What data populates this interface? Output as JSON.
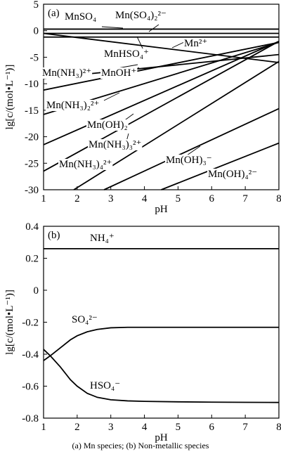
{
  "caption": "(a) Mn species; (b) Non-metallic species",
  "chart_data": [
    {
      "type": "line",
      "panel_label": "(a)",
      "xlabel": "pH",
      "ylabel": "lg[c/(mol•L⁻¹)]",
      "xlim": [
        1,
        8
      ],
      "ylim": [
        -30,
        5
      ],
      "x_ticks": [
        1,
        2,
        3,
        4,
        5,
        6,
        7,
        8
      ],
      "y_ticks": [
        5,
        0,
        -5,
        -10,
        -15,
        -20,
        -25,
        -30
      ],
      "series": [
        {
          "name": "MnSO₄",
          "x": [
            1,
            8
          ],
          "y": [
            0.3,
            0.3
          ]
        },
        {
          "name": "Mn(SO₄)₂²⁻",
          "x": [
            1,
            8
          ],
          "y": [
            -0.5,
            -0.5
          ]
        },
        {
          "name": "MnHSO₄⁺",
          "x": [
            1,
            8
          ],
          "y": [
            -1.2,
            -1.2
          ]
        },
        {
          "name": "Mn²⁺",
          "x": [
            1,
            8
          ],
          "y": [
            -0.5,
            -6.0
          ]
        },
        {
          "name": "Mn(NH₃)²⁺",
          "x": [
            1,
            8
          ],
          "y": [
            -9.0,
            -4.5
          ]
        },
        {
          "name": "MnOH⁺",
          "x": [
            1,
            8
          ],
          "y": [
            -11.2,
            -2.2
          ]
        },
        {
          "name": "Mn(NH₃)₂²⁺",
          "x": [
            1,
            8
          ],
          "y": [
            -15.8,
            -2.2
          ]
        },
        {
          "name": "Mn(OH)₂",
          "x": [
            1,
            8
          ],
          "y": [
            -21.5,
            -2.0
          ]
        },
        {
          "name": "Mn(NH₃)₃²⁺",
          "x": [
            1,
            8
          ],
          "y": [
            -26.5,
            -2.0
          ]
        },
        {
          "name": "Mn(NH₃)₄²⁺",
          "x": [
            1.9,
            8
          ],
          "y": [
            -30,
            -5.8
          ]
        },
        {
          "name": "Mn(OH)₃⁻",
          "x": [
            2.8,
            8
          ],
          "y": [
            -30,
            -14.7
          ]
        },
        {
          "name": "Mn(OH)₄²⁻",
          "x": [
            4.5,
            8
          ],
          "y": [
            -30,
            -21.2
          ]
        }
      ],
      "annotations": [
        {
          "text": "MnSO₄"
        },
        {
          "text": "Mn(SO₄)₂²⁻"
        },
        {
          "text": "Mn²⁺"
        },
        {
          "text": "MnHSO₄⁺"
        },
        {
          "text": "Mn(NH₃)²⁺"
        },
        {
          "text": "MnOH⁺"
        },
        {
          "text": "Mn(NH₃)₂²⁺"
        },
        {
          "text": "Mn(OH)₂"
        },
        {
          "text": "Mn(NH₃)₃²⁺"
        },
        {
          "text": "Mn(NH₃)₄²⁺"
        },
        {
          "text": "Mn(OH)₃⁻"
        },
        {
          "text": "Mn(OH)₄²⁻"
        }
      ]
    },
    {
      "type": "line",
      "panel_label": "(b)",
      "xlabel": "pH",
      "ylabel": "lg[c/(mol•L⁻¹)]",
      "xlim": [
        1,
        8
      ],
      "ylim": [
        -0.8,
        0.4
      ],
      "x_ticks": [
        1,
        2,
        3,
        4,
        5,
        6,
        7,
        8
      ],
      "y_ticks": [
        "0.4",
        "0.2",
        "0",
        "-0.2",
        "-0.4",
        "-0.6",
        "-0.8"
      ],
      "series": [
        {
          "name": "NH₄⁺",
          "x": [
            1,
            8
          ],
          "y": [
            0.26,
            0.26
          ]
        },
        {
          "name": "SO₄²⁻",
          "x": [
            1,
            1.2,
            1.5,
            1.8,
            2.0,
            2.3,
            2.6,
            3.0,
            3.5,
            4.0,
            5,
            6,
            7,
            8
          ],
          "y": [
            -0.44,
            -0.41,
            -0.36,
            -0.31,
            -0.285,
            -0.26,
            -0.245,
            -0.235,
            -0.232,
            -0.232,
            -0.232,
            -0.232,
            -0.232,
            -0.232
          ]
        },
        {
          "name": "HSO₄⁻",
          "x": [
            1,
            1.2,
            1.5,
            1.8,
            2.0,
            2.3,
            2.6,
            3.0,
            3.5,
            4.0,
            5,
            6,
            7,
            8
          ],
          "y": [
            -0.37,
            -0.41,
            -0.48,
            -0.56,
            -0.6,
            -0.645,
            -0.67,
            -0.685,
            -0.692,
            -0.695,
            -0.698,
            -0.7,
            -0.701,
            -0.702
          ]
        }
      ],
      "annotations": [
        {
          "text": "NH₄⁺"
        },
        {
          "text": "SO₄²⁻"
        },
        {
          "text": "HSO₄⁻"
        }
      ]
    }
  ]
}
